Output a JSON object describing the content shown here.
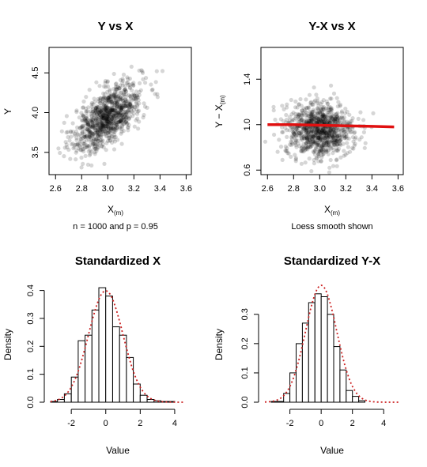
{
  "chart_data": [
    {
      "id": "p1",
      "type": "scatter",
      "title": "Y vs X",
      "xlabel_main": "X",
      "xlabel_sub": "(m)",
      "ylabel": "Y",
      "note": "n = 1000 and p = 0.95",
      "xlim": [
        2.55,
        3.64
      ],
      "ylim": [
        3.22,
        4.82
      ],
      "xticks": [
        2.6,
        2.8,
        3.0,
        3.2,
        3.4,
        3.6
      ],
      "yticks": [
        3.5,
        4.0,
        4.5
      ],
      "tick_decimals": 1,
      "points": {
        "n": 1000,
        "x_mean": 3.0,
        "x_sd": 0.13,
        "y_mean": 3.95,
        "y_sd": 0.22,
        "correlation": 0.62
      },
      "point_color": "#000000"
    },
    {
      "id": "p2",
      "type": "scatter",
      "title": "Y-X vs X",
      "xlabel_main": "X",
      "xlabel_sub": "(m)",
      "ylabel_main": "Y − X",
      "ylabel_sub": "(m)",
      "note": "Loess smooth shown",
      "xlim": [
        2.55,
        3.64
      ],
      "ylim": [
        0.56,
        1.68
      ],
      "xticks": [
        2.6,
        2.8,
        3.0,
        3.2,
        3.4,
        3.6
      ],
      "yticks": [
        0.6,
        1.0,
        1.4
      ],
      "tick_decimals": 1,
      "points": {
        "n": 1000,
        "x_mean": 3.0,
        "x_sd": 0.13,
        "y_mean": 0.95,
        "y_sd": 0.12,
        "correlation": -0.05
      },
      "point_color": "#000000",
      "smooth": {
        "x": [
          2.6,
          2.8,
          3.0,
          3.2,
          3.4,
          3.57
        ],
        "y": [
          1.0,
          1.0,
          0.995,
          0.99,
          0.985,
          0.98
        ]
      },
      "smooth_color": "#e01010"
    },
    {
      "id": "p3",
      "type": "bar",
      "title": "Standardized X",
      "xlabel": "Value",
      "ylabel": "Density",
      "xlim": [
        -3.2,
        4.6
      ],
      "ylim": [
        0,
        0.43
      ],
      "xticks": [
        -2,
        0,
        2,
        4
      ],
      "yticks": [
        0.0,
        0.1,
        0.2,
        0.3,
        0.4
      ],
      "tick_decimals": 0,
      "ytick_decimals": 1,
      "bin_width": 0.4,
      "bins": [
        {
          "x0": -3.2,
          "density": 0.0025
        },
        {
          "x0": -2.8,
          "density": 0.01
        },
        {
          "x0": -2.4,
          "density": 0.03
        },
        {
          "x0": -2.0,
          "density": 0.09
        },
        {
          "x0": -1.6,
          "density": 0.22
        },
        {
          "x0": -1.2,
          "density": 0.24
        },
        {
          "x0": -0.8,
          "density": 0.33
        },
        {
          "x0": -0.4,
          "density": 0.41
        },
        {
          "x0": 0.0,
          "density": 0.38
        },
        {
          "x0": 0.4,
          "density": 0.27
        },
        {
          "x0": 0.8,
          "density": 0.24
        },
        {
          "x0": 1.2,
          "density": 0.16
        },
        {
          "x0": 1.6,
          "density": 0.065
        },
        {
          "x0": 2.0,
          "density": 0.025
        },
        {
          "x0": 2.4,
          "density": 0.01
        },
        {
          "x0": 2.8,
          "density": 0.005
        },
        {
          "x0": 3.2,
          "density": 0.0025
        },
        {
          "x0": 3.6,
          "density": 0.0025
        }
      ],
      "density_curve": {
        "mean": 0,
        "sd": 1,
        "color": "#cc2222",
        "style": "dotted"
      }
    },
    {
      "id": "p4",
      "type": "bar",
      "title": "Standardized Y-X",
      "xlabel": "Value",
      "ylabel": "Density",
      "xlim": [
        -3.6,
        5.0
      ],
      "ylim": [
        0,
        0.41
      ],
      "xticks": [
        -2,
        0,
        2,
        4
      ],
      "yticks": [
        0.0,
        0.1,
        0.2,
        0.3
      ],
      "tick_decimals": 0,
      "ytick_decimals": 1,
      "bin_width": 0.4,
      "bins": [
        {
          "x0": -3.2,
          "density": 0.0025
        },
        {
          "x0": -2.8,
          "density": 0.0025
        },
        {
          "x0": -2.4,
          "density": 0.03
        },
        {
          "x0": -2.0,
          "density": 0.1
        },
        {
          "x0": -1.6,
          "density": 0.2
        },
        {
          "x0": -1.2,
          "density": 0.27
        },
        {
          "x0": -0.8,
          "density": 0.34
        },
        {
          "x0": -0.4,
          "density": 0.37
        },
        {
          "x0": 0.0,
          "density": 0.36
        },
        {
          "x0": 0.4,
          "density": 0.3
        },
        {
          "x0": 0.8,
          "density": 0.19
        },
        {
          "x0": 1.2,
          "density": 0.11
        },
        {
          "x0": 1.6,
          "density": 0.04
        },
        {
          "x0": 2.0,
          "density": 0.02
        },
        {
          "x0": 2.4,
          "density": 0.005
        }
      ],
      "density_curve": {
        "mean": 0,
        "sd": 1,
        "color": "#cc2222",
        "style": "dotted"
      }
    }
  ]
}
